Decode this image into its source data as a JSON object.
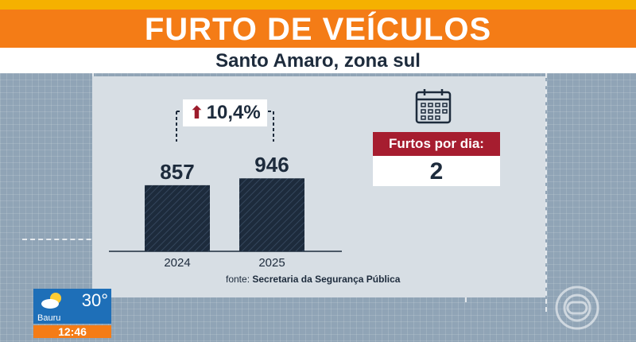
{
  "header": {
    "title": "FURTO DE VEÍCULOS",
    "subtitle": "Santo Amaro, zona sul"
  },
  "change_label": "10,4%",
  "stats": {
    "per_day_label": "Furtos por dia:",
    "per_day_value": "2"
  },
  "source": {
    "prefix": "fonte:",
    "name": "Secretaria da Segurança Pública"
  },
  "weather": {
    "temperature": "30°",
    "city": "Bauru",
    "time": "12:46"
  },
  "icons": {
    "calendar": "calendar-icon",
    "arrow": "arrow-up-icon",
    "weather": "partly-cloudy-icon",
    "logo": "globo-logo-icon"
  },
  "colors": {
    "bar": "#1d2b3c",
    "accent_red": "#a61d2f",
    "title_orange": "#f47c16"
  },
  "chart_data": {
    "type": "bar",
    "categories": [
      "2024",
      "2025"
    ],
    "values": [
      857,
      946
    ],
    "ylim": [
      0,
      1000
    ]
  }
}
